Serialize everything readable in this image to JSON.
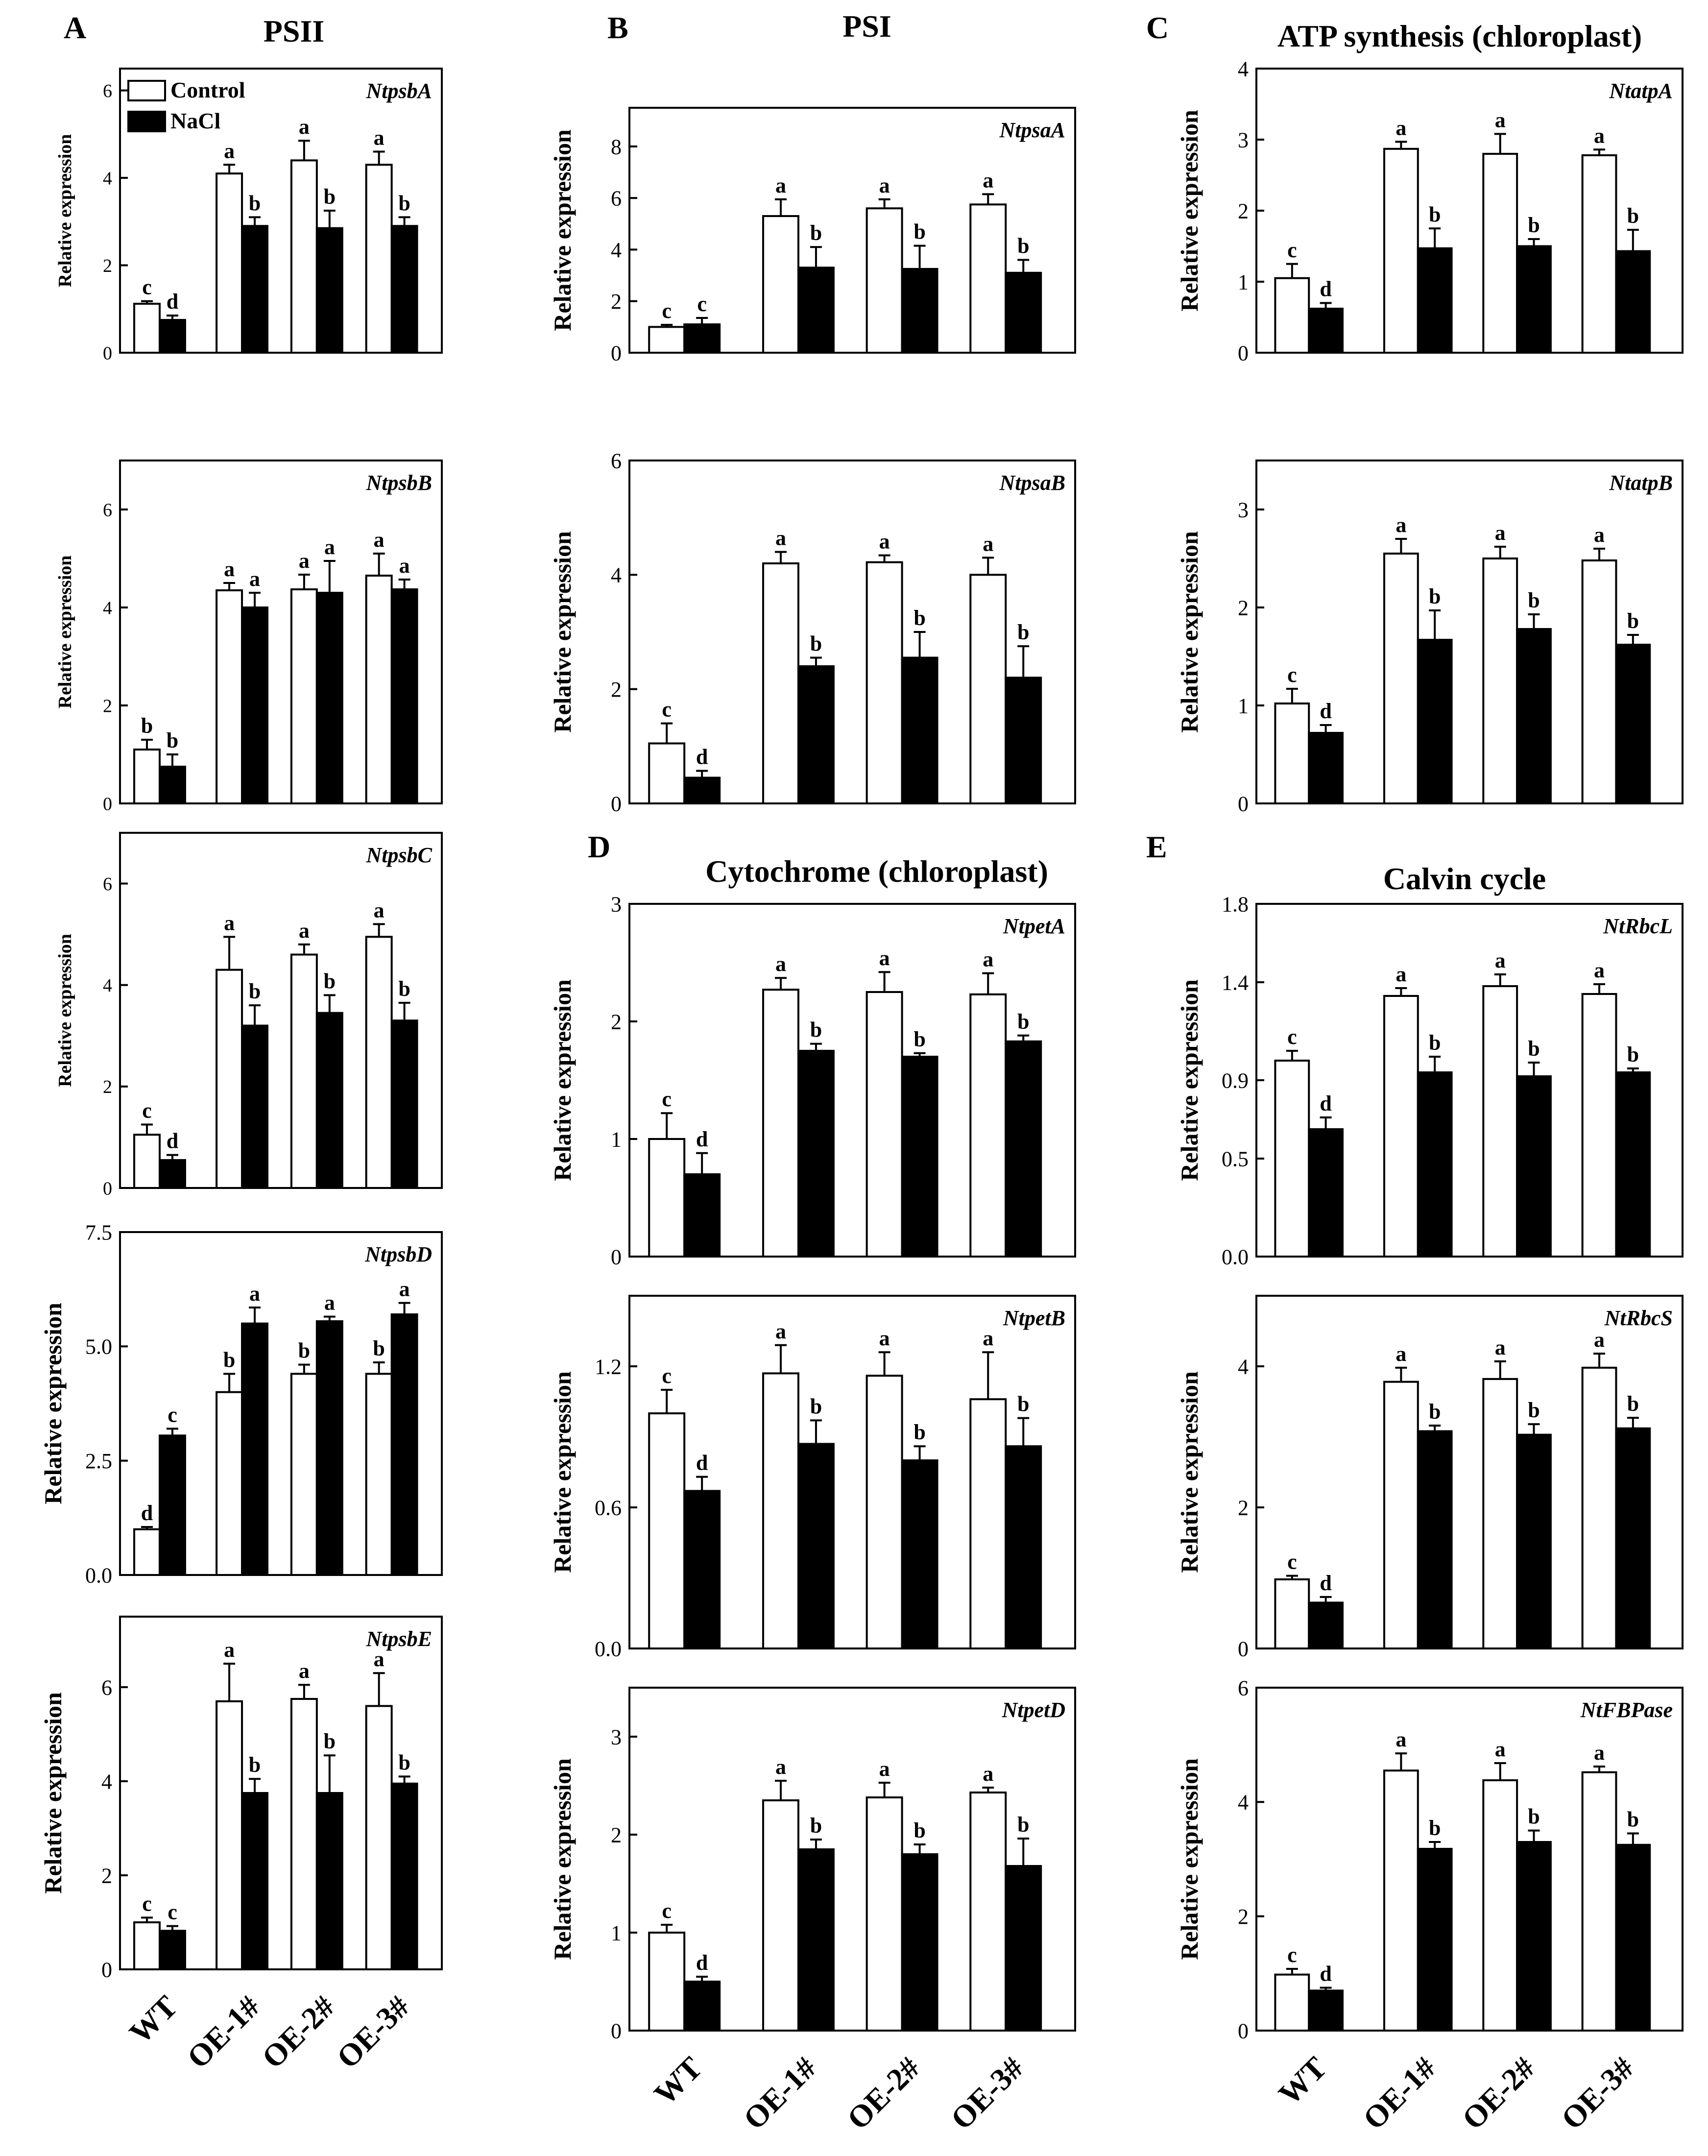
{
  "chart_data": {
    "type": "bar",
    "categories": [
      "WT",
      "OE-1#",
      "OE-2#",
      "OE-3#"
    ],
    "legend": [
      "Control",
      "NaCl"
    ],
    "series_colors": {
      "Control": "#ffffff",
      "NaCl": "#000000"
    },
    "columns": [
      {
        "letter": "A",
        "title": "PSII"
      },
      {
        "letter": "B",
        "title": "PSI"
      },
      {
        "letter": "C",
        "title": "ATP synthesis (chloroplast)"
      }
    ],
    "sections": [
      {
        "letter": "D",
        "title": "Cytochrome (chloroplast)"
      },
      {
        "letter": "E",
        "title": "Calvin cycle"
      }
    ],
    "panels": [
      {
        "gene": "NtpsbA",
        "ylabel": "Relative expression",
        "ylim": [
          0,
          6.5
        ],
        "ticks": [
          "0",
          "2",
          "4",
          "6"
        ],
        "control": [
          1.12,
          4.1,
          4.4,
          4.3
        ],
        "control_err": [
          0.06,
          0.2,
          0.45,
          0.3
        ],
        "nacl": [
          0.75,
          2.9,
          2.85,
          2.9
        ],
        "nacl_err": [
          0.1,
          0.2,
          0.4,
          0.2
        ],
        "control_letters": [
          "c",
          "a",
          "a",
          "a"
        ],
        "nacl_letters": [
          "d",
          "b",
          "b",
          "b"
        ]
      },
      {
        "gene": "NtpsaA",
        "ylabel": "Relative expression",
        "ylim": [
          0,
          9.5
        ],
        "ticks": [
          "0",
          "2",
          "4",
          "6",
          "8"
        ],
        "control": [
          1.0,
          5.3,
          5.6,
          5.75
        ],
        "control_err": [
          0.08,
          0.65,
          0.35,
          0.4
        ],
        "nacl": [
          1.1,
          3.3,
          3.25,
          3.1
        ],
        "nacl_err": [
          0.25,
          0.8,
          0.9,
          0.5
        ],
        "control_letters": [
          "c",
          "a",
          "a",
          "a"
        ],
        "nacl_letters": [
          "c",
          "b",
          "b",
          "b"
        ]
      },
      {
        "gene": "NtatpA",
        "ylabel": "Relative expression",
        "ylim": [
          0,
          4
        ],
        "ticks": [
          "0",
          "1",
          "2",
          "3",
          "4"
        ],
        "control": [
          1.05,
          2.87,
          2.8,
          2.78
        ],
        "control_err": [
          0.2,
          0.1,
          0.28,
          0.08
        ],
        "nacl": [
          0.62,
          1.47,
          1.5,
          1.43
        ],
        "nacl_err": [
          0.08,
          0.28,
          0.1,
          0.3
        ],
        "control_letters": [
          "c",
          "a",
          "a",
          "a"
        ],
        "nacl_letters": [
          "d",
          "b",
          "b",
          "b"
        ]
      },
      {
        "gene": "NtpsbB",
        "ylabel": "Relative expression",
        "ylim": [
          0,
          7
        ],
        "ticks": [
          "0",
          "2",
          "4",
          "6"
        ],
        "control": [
          1.1,
          4.35,
          4.37,
          4.65
        ],
        "control_err": [
          0.2,
          0.15,
          0.3,
          0.45
        ],
        "nacl": [
          0.75,
          4.0,
          4.3,
          4.37
        ],
        "nacl_err": [
          0.25,
          0.3,
          0.65,
          0.2
        ],
        "control_letters": [
          "b",
          "a",
          "a",
          "a"
        ],
        "nacl_letters": [
          "b",
          "a",
          "a",
          "a"
        ]
      },
      {
        "gene": "NtpsaB",
        "ylabel": "Relative expression",
        "ylim": [
          0,
          6
        ],
        "ticks": [
          "0",
          "2",
          "4",
          "6"
        ],
        "control": [
          1.05,
          4.2,
          4.22,
          4.0
        ],
        "control_err": [
          0.35,
          0.2,
          0.12,
          0.3
        ],
        "nacl": [
          0.45,
          2.4,
          2.55,
          2.2
        ],
        "nacl_err": [
          0.12,
          0.15,
          0.45,
          0.55
        ],
        "control_letters": [
          "c",
          "a",
          "a",
          "a"
        ],
        "nacl_letters": [
          "d",
          "b",
          "b",
          "b"
        ]
      },
      {
        "gene": "NtatpB",
        "ylabel": "Relative expression",
        "ylim": [
          0,
          3.5
        ],
        "ticks": [
          "0",
          "1",
          "2",
          "3"
        ],
        "control": [
          1.02,
          2.55,
          2.5,
          2.48
        ],
        "control_err": [
          0.15,
          0.15,
          0.12,
          0.12
        ],
        "nacl": [
          0.72,
          1.67,
          1.78,
          1.62
        ],
        "nacl_err": [
          0.08,
          0.3,
          0.15,
          0.1
        ],
        "control_letters": [
          "c",
          "a",
          "a",
          "a"
        ],
        "nacl_letters": [
          "d",
          "b",
          "b",
          "b"
        ]
      },
      {
        "gene": "NtpsbC",
        "ylabel": "Relative expression",
        "ylim": [
          0,
          7
        ],
        "ticks": [
          "0",
          "2",
          "4",
          "6"
        ],
        "control": [
          1.05,
          4.3,
          4.6,
          4.95
        ],
        "control_err": [
          0.2,
          0.65,
          0.2,
          0.25
        ],
        "nacl": [
          0.55,
          3.2,
          3.45,
          3.3
        ],
        "nacl_err": [
          0.1,
          0.4,
          0.35,
          0.35
        ],
        "control_letters": [
          "c",
          "a",
          "a",
          "a"
        ],
        "nacl_letters": [
          "d",
          "b",
          "b",
          "b"
        ]
      },
      {
        "gene": "NtpetA",
        "ylabel": "Relative expression",
        "ylim": [
          0,
          3
        ],
        "ticks": [
          "0",
          "1",
          "2",
          "3"
        ],
        "control": [
          1.0,
          2.27,
          2.25,
          2.23
        ],
        "control_err": [
          0.22,
          0.1,
          0.17,
          0.18
        ],
        "nacl": [
          0.7,
          1.75,
          1.7,
          1.83
        ],
        "nacl_err": [
          0.18,
          0.06,
          0.03,
          0.05
        ],
        "control_letters": [
          "c",
          "a",
          "a",
          "a"
        ],
        "nacl_letters": [
          "d",
          "b",
          "b",
          "b"
        ]
      },
      {
        "gene": "NtRbcL",
        "ylabel": "Relative expression",
        "ylim": [
          0,
          1.8
        ],
        "ticks": [
          "0.0",
          "0.5",
          "0.9",
          "1.4",
          "1.8"
        ],
        "control": [
          1.0,
          1.33,
          1.38,
          1.34
        ],
        "control_err": [
          0.05,
          0.04,
          0.06,
          0.05
        ],
        "nacl": [
          0.65,
          0.94,
          0.92,
          0.94
        ],
        "nacl_err": [
          0.06,
          0.08,
          0.07,
          0.02
        ],
        "control_letters": [
          "c",
          "a",
          "a",
          "a"
        ],
        "nacl_letters": [
          "d",
          "b",
          "b",
          "b"
        ]
      },
      {
        "gene": "NtpsbD",
        "ylabel": "Relative expression",
        "ylim": [
          0,
          7.5
        ],
        "ticks": [
          "0.0",
          "2.5",
          "5.0",
          "7.5"
        ],
        "control": [
          1.0,
          4.0,
          4.4,
          4.4
        ],
        "control_err": [
          0.05,
          0.4,
          0.2,
          0.25
        ],
        "nacl": [
          3.05,
          5.5,
          5.55,
          5.7
        ],
        "nacl_err": [
          0.15,
          0.35,
          0.1,
          0.25
        ],
        "control_letters": [
          "d",
          "b",
          "b",
          "b"
        ],
        "nacl_letters": [
          "c",
          "a",
          "a",
          "a"
        ]
      },
      {
        "gene": "NtpetB",
        "ylabel": "Relative expression",
        "ylim": [
          0,
          1.5
        ],
        "ticks": [
          "0.0",
          "0.6",
          "1.2"
        ],
        "control": [
          1.0,
          1.17,
          1.16,
          1.06
        ],
        "control_err": [
          0.1,
          0.12,
          0.1,
          0.2
        ],
        "nacl": [
          0.67,
          0.87,
          0.8,
          0.86
        ],
        "nacl_err": [
          0.06,
          0.1,
          0.06,
          0.12
        ],
        "control_letters": [
          "c",
          "a",
          "a",
          "a"
        ],
        "nacl_letters": [
          "d",
          "b",
          "b",
          "b"
        ]
      },
      {
        "gene": "NtRbcS",
        "ylabel": "Relative expression",
        "ylim": [
          0,
          5
        ],
        "ticks": [
          "0",
          "2",
          "4"
        ],
        "control": [
          0.98,
          3.78,
          3.82,
          3.98
        ],
        "control_err": [
          0.05,
          0.2,
          0.25,
          0.2
        ],
        "nacl": [
          0.65,
          3.08,
          3.03,
          3.12
        ],
        "nacl_err": [
          0.08,
          0.08,
          0.15,
          0.15
        ],
        "control_letters": [
          "c",
          "a",
          "a",
          "a"
        ],
        "nacl_letters": [
          "d",
          "b",
          "b",
          "b"
        ]
      },
      {
        "gene": "NtpsbE",
        "ylabel": "Relative expression",
        "ylim": [
          0,
          7.5
        ],
        "ticks": [
          "0",
          "2",
          "4",
          "6"
        ],
        "control": [
          1.0,
          5.7,
          5.75,
          5.6
        ],
        "control_err": [
          0.1,
          0.8,
          0.3,
          0.7
        ],
        "nacl": [
          0.82,
          3.75,
          3.75,
          3.95
        ],
        "nacl_err": [
          0.1,
          0.3,
          0.8,
          0.15
        ],
        "control_letters": [
          "c",
          "a",
          "a",
          "a"
        ],
        "nacl_letters": [
          "c",
          "b",
          "b",
          "b"
        ]
      },
      {
        "gene": "NtpetD",
        "ylabel": "Relative expression",
        "ylim": [
          0,
          3.5
        ],
        "ticks": [
          "0",
          "1",
          "2",
          "3"
        ],
        "control": [
          1.0,
          2.35,
          2.38,
          2.43
        ],
        "control_err": [
          0.08,
          0.2,
          0.15,
          0.05
        ],
        "nacl": [
          0.5,
          1.85,
          1.8,
          1.68
        ],
        "nacl_err": [
          0.05,
          0.1,
          0.1,
          0.28
        ],
        "control_letters": [
          "c",
          "a",
          "a",
          "a"
        ],
        "nacl_letters": [
          "d",
          "b",
          "b",
          "b"
        ]
      },
      {
        "gene": "NtFBPase",
        "ylabel": "Relative expression",
        "ylim": [
          0,
          6
        ],
        "ticks": [
          "0",
          "2",
          "4",
          "6"
        ],
        "control": [
          0.98,
          4.55,
          4.38,
          4.52
        ],
        "control_err": [
          0.1,
          0.3,
          0.3,
          0.1
        ],
        "nacl": [
          0.7,
          3.18,
          3.3,
          3.25
        ],
        "nacl_err": [
          0.05,
          0.12,
          0.2,
          0.2
        ],
        "control_letters": [
          "c",
          "a",
          "a",
          "a"
        ],
        "nacl_letters": [
          "d",
          "b",
          "b",
          "b"
        ]
      }
    ]
  }
}
